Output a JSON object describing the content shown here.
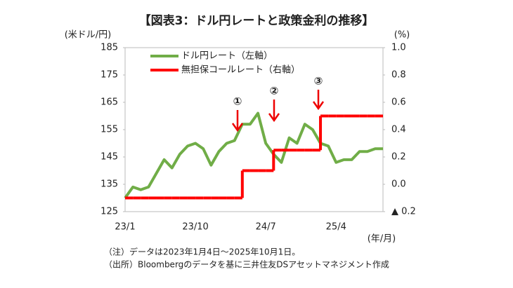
{
  "chart_data": {
    "type": "line",
    "title": "【図表3：ドル円レートと政策金利の推移】",
    "y_label": "(米ドル/円)",
    "y2_label": "(%)",
    "x_label": "(年/月)",
    "categories": [
      "23/1",
      null,
      null,
      null,
      null,
      null,
      null,
      null,
      null,
      "23/10",
      null,
      null,
      null,
      null,
      null,
      null,
      null,
      null,
      "24/7",
      null,
      null,
      null,
      null,
      null,
      null,
      null,
      null,
      "25/4",
      null,
      null,
      null,
      null,
      null,
      null
    ],
    "series": [
      {
        "name": "ドル円レート（左軸）",
        "color": "#70ad47",
        "axis": "y",
        "style": "line",
        "values": [
          130,
          134,
          133,
          134,
          139,
          144,
          141,
          146,
          149,
          150,
          148,
          142,
          147,
          150,
          151,
          157,
          157,
          161,
          150,
          146,
          143,
          152,
          150,
          157,
          155,
          150,
          149,
          143,
          144,
          144,
          147,
          147,
          148,
          148
        ]
      },
      {
        "name": "無担保コールレート（右軸）",
        "color": "#ff0000",
        "axis": "y2",
        "style": "step",
        "values": [
          -0.1,
          -0.1,
          -0.1,
          -0.1,
          -0.1,
          -0.1,
          -0.1,
          -0.1,
          -0.1,
          -0.1,
          -0.1,
          -0.1,
          -0.1,
          -0.1,
          -0.1,
          0.1,
          0.1,
          0.1,
          0.1,
          0.25,
          0.25,
          0.25,
          0.25,
          0.25,
          0.25,
          0.5,
          0.5,
          0.5,
          0.5,
          0.5,
          0.5,
          0.5,
          0.5,
          0.5
        ]
      }
    ],
    "ylim": [
      125,
      185
    ],
    "yticks": [
      125,
      135,
      145,
      155,
      165,
      175,
      185
    ],
    "y2lim": [
      -0.2,
      1
    ],
    "y2ticks": [
      {
        "value": -0.2,
        "label": "▲ 0.2"
      },
      {
        "value": 0,
        "label": "0.0"
      },
      0.2,
      0.4,
      0.6,
      0.8,
      {
        "value": 1,
        "label": "1.0"
      }
    ],
    "annotations": [
      "①",
      "②",
      "③"
    ],
    "notes": [
      "（注）データは2023年1月4日～2025年10月1日。",
      "（出所）Bloombergのデータを基に三井住友DSアセットマネジメント作成"
    ],
    "legend": "upper left",
    "grid": false
  }
}
